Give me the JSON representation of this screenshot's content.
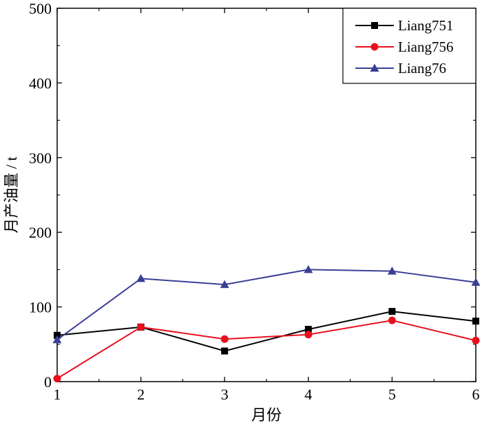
{
  "chart_data": {
    "type": "line",
    "title": "",
    "xlabel": "月份",
    "ylabel": "月产油量 / t",
    "x": [
      1,
      2,
      3,
      4,
      5,
      6
    ],
    "xlim": [
      1,
      6
    ],
    "ylim": [
      0,
      500
    ],
    "xticks": [
      "1",
      "2",
      "3",
      "4",
      "5",
      "6"
    ],
    "yticks": [
      "0",
      "100",
      "200",
      "300",
      "400",
      "500"
    ],
    "grid": false,
    "legend_position": "top-right",
    "series": [
      {
        "name": "Liang751",
        "color": "#000000",
        "marker": "square",
        "values": [
          62,
          73,
          41,
          70,
          94,
          81
        ]
      },
      {
        "name": "Liang756",
        "color": "#e8101e",
        "marker": "circle",
        "values": [
          4,
          73,
          57,
          63,
          82,
          55
        ]
      },
      {
        "name": "Liang76",
        "color": "#3a3f96",
        "marker": "triangle",
        "values": [
          56,
          138,
          130,
          150,
          148,
          133
        ]
      }
    ]
  }
}
